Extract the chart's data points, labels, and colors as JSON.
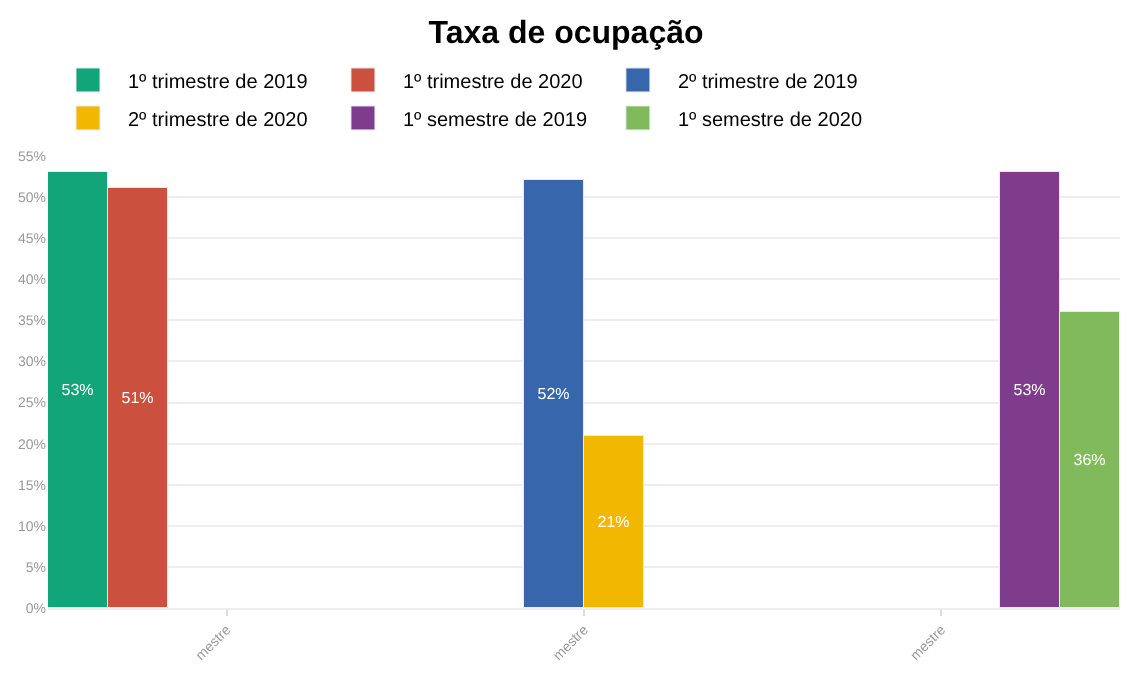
{
  "chart_data": {
    "type": "bar",
    "title": "Taxa de ocupação",
    "categories": [
      "mestre",
      "mestre",
      "mestre"
    ],
    "series": [
      {
        "name": "1º trimestre de 2019",
        "color": "#12a57a",
        "values": [
          53,
          null,
          null
        ]
      },
      {
        "name": "1º trimestre de 2020",
        "color": "#cc503e",
        "values": [
          51,
          null,
          null
        ]
      },
      {
        "name": "2º trimestre de 2019",
        "color": "#3766ad",
        "values": [
          null,
          52,
          null
        ]
      },
      {
        "name": "2º trimestre de 2020",
        "color": "#f2b701",
        "values": [
          null,
          21,
          null
        ]
      },
      {
        "name": "1º semestre de 2019",
        "color": "#7f3c8d",
        "values": [
          null,
          null,
          53
        ]
      },
      {
        "name": "1º semestre de 2020",
        "color": "#80ba5a",
        "values": [
          null,
          null,
          36
        ]
      }
    ],
    "ylim": [
      0,
      55
    ],
    "yticks": [
      {
        "value": 0,
        "label": "0%"
      },
      {
        "value": 5,
        "label": "5%"
      },
      {
        "value": 10,
        "label": "10%"
      },
      {
        "value": 15,
        "label": "15%"
      },
      {
        "value": 20,
        "label": "20%"
      },
      {
        "value": 25,
        "label": "25%"
      },
      {
        "value": 30,
        "label": "30%"
      },
      {
        "value": 35,
        "label": "35%"
      },
      {
        "value": 40,
        "label": "40%"
      },
      {
        "value": 45,
        "label": "45%"
      },
      {
        "value": 50,
        "label": "50%"
      },
      {
        "value": 55,
        "label": "55%"
      }
    ],
    "value_labels": [
      "53%",
      "51%",
      "52%",
      "21%",
      "53%",
      "36%"
    ],
    "grid": "y",
    "legend": "top left"
  }
}
